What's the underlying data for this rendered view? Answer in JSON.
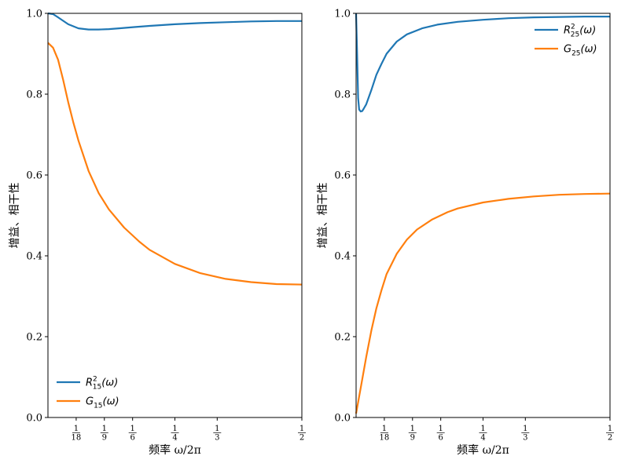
{
  "chart_data": [
    {
      "type": "line",
      "xlabel": "频率 ω/2π",
      "ylabel": "增益、相干性",
      "xlim": [
        0.0,
        0.5
      ],
      "ylim": [
        0.0,
        1.0
      ],
      "yticks": [
        "0.0",
        "0.2",
        "0.4",
        "0.6",
        "0.8",
        "1.0"
      ],
      "xticks": [
        {
          "value": 0.0556,
          "num": "1",
          "den": "18"
        },
        {
          "value": 0.1111,
          "num": "1",
          "den": "9"
        },
        {
          "value": 0.1667,
          "num": "1",
          "den": "6"
        },
        {
          "value": 0.25,
          "num": "1",
          "den": "4"
        },
        {
          "value": 0.3333,
          "num": "1",
          "den": "3"
        },
        {
          "value": 0.5,
          "num": "1",
          "den": "2"
        }
      ],
      "legend_position": "lower-left",
      "series": [
        {
          "name": "R²₁₅(ω)",
          "label_main": "R",
          "label_sup": "2",
          "label_sub": "15",
          "label_arg": "(ω)",
          "color": "#1f77b4",
          "x": [
            0.0,
            0.01,
            0.02,
            0.04,
            0.06,
            0.08,
            0.1,
            0.12,
            0.14,
            0.17,
            0.2,
            0.25,
            0.3,
            0.35,
            0.4,
            0.45,
            0.5
          ],
          "y": [
            1.0,
            0.998,
            0.99,
            0.973,
            0.963,
            0.96,
            0.96,
            0.961,
            0.963,
            0.966,
            0.969,
            0.973,
            0.976,
            0.978,
            0.98,
            0.981,
            0.981
          ]
        },
        {
          "name": "G₁₅(ω)",
          "label_main": "G",
          "label_sup": "",
          "label_sub": "15",
          "label_arg": "(ω)",
          "color": "#ff7f0e",
          "x": [
            0.0,
            0.01,
            0.02,
            0.03,
            0.04,
            0.05,
            0.06,
            0.08,
            0.1,
            0.12,
            0.15,
            0.18,
            0.2,
            0.25,
            0.3,
            0.35,
            0.4,
            0.45,
            0.5
          ],
          "y": [
            0.927,
            0.915,
            0.885,
            0.835,
            0.78,
            0.73,
            0.685,
            0.61,
            0.555,
            0.515,
            0.47,
            0.435,
            0.415,
            0.38,
            0.357,
            0.343,
            0.335,
            0.33,
            0.329
          ]
        }
      ]
    },
    {
      "type": "line",
      "xlabel": "频率 ω/2π",
      "ylabel": "增益、相干性",
      "xlim": [
        0.0,
        0.5
      ],
      "ylim": [
        0.0,
        1.0
      ],
      "yticks": [
        "0.0",
        "0.2",
        "0.4",
        "0.6",
        "0.8",
        "1.0"
      ],
      "xticks": [
        {
          "value": 0.0556,
          "num": "1",
          "den": "18"
        },
        {
          "value": 0.1111,
          "num": "1",
          "den": "9"
        },
        {
          "value": 0.1667,
          "num": "1",
          "den": "6"
        },
        {
          "value": 0.25,
          "num": "1",
          "den": "4"
        },
        {
          "value": 0.3333,
          "num": "1",
          "den": "3"
        },
        {
          "value": 0.5,
          "num": "1",
          "den": "2"
        }
      ],
      "legend_position": "upper-right",
      "series": [
        {
          "name": "R²₂₅(ω)",
          "label_main": "R",
          "label_sup": "2",
          "label_sub": "25",
          "label_arg": "(ω)",
          "color": "#1f77b4",
          "x": [
            0.0,
            0.002,
            0.004,
            0.006,
            0.009,
            0.012,
            0.015,
            0.02,
            0.03,
            0.04,
            0.05,
            0.06,
            0.08,
            0.1,
            0.13,
            0.16,
            0.2,
            0.25,
            0.3,
            0.35,
            0.4,
            0.45,
            0.5
          ],
          "y": [
            1.0,
            0.9,
            0.79,
            0.762,
            0.757,
            0.758,
            0.764,
            0.775,
            0.81,
            0.848,
            0.875,
            0.9,
            0.93,
            0.948,
            0.963,
            0.972,
            0.979,
            0.984,
            0.988,
            0.99,
            0.991,
            0.992,
            0.992
          ]
        },
        {
          "name": "G₂₅(ω)",
          "label_main": "G",
          "label_sup": "",
          "label_sub": "25",
          "label_arg": "(ω)",
          "color": "#ff7f0e",
          "x": [
            0.0,
            0.01,
            0.02,
            0.03,
            0.04,
            0.05,
            0.06,
            0.08,
            0.1,
            0.12,
            0.15,
            0.18,
            0.2,
            0.25,
            0.3,
            0.35,
            0.4,
            0.45,
            0.5
          ],
          "y": [
            0.01,
            0.08,
            0.15,
            0.215,
            0.27,
            0.315,
            0.355,
            0.405,
            0.44,
            0.465,
            0.49,
            0.508,
            0.517,
            0.532,
            0.541,
            0.547,
            0.551,
            0.553,
            0.554
          ]
        }
      ]
    }
  ]
}
